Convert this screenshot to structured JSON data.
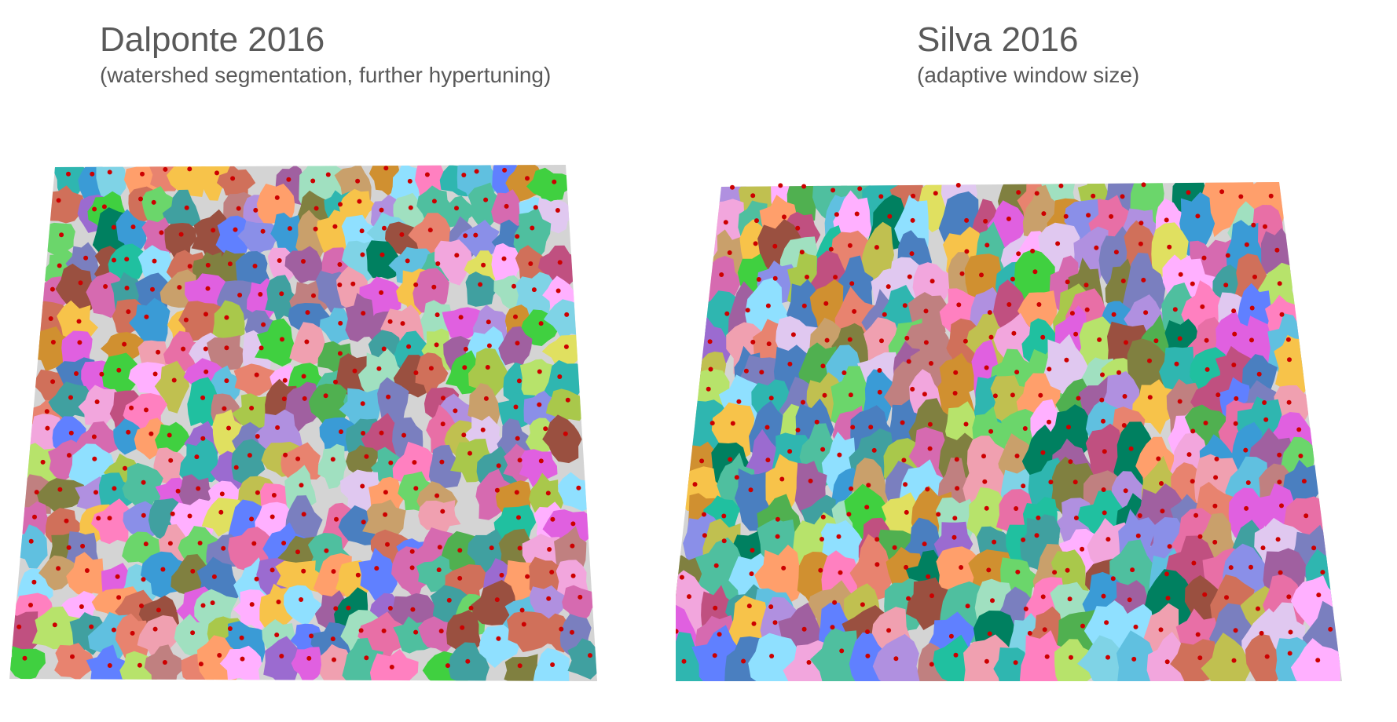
{
  "panels": [
    {
      "title": "Dalponte 2016",
      "subtitle": "(watershed segmentation, further hypertuning)"
    },
    {
      "title": "Silva 2016",
      "subtitle": "(adaptive window size)"
    }
  ],
  "colors": {
    "text": "#595959",
    "tree_top_marker": "#cc0000",
    "unsegmented_points": "#d4d4d4",
    "segment_palette": [
      "#f2a6dd",
      "#7fd3e6",
      "#a9c84b",
      "#e8836f",
      "#4fbf9f",
      "#9b6bd0",
      "#f7c34a",
      "#3a9bd6",
      "#d66ab0",
      "#6bd66b",
      "#c9a06b",
      "#8a8fe8",
      "#e86fa6",
      "#2fb6b0",
      "#b7e36b",
      "#ff9f6b",
      "#7a7fbf",
      "#e0c8f0",
      "#a0e0c0",
      "#d0705a",
      "#4a7fc0",
      "#c0c050",
      "#f0a0b0",
      "#60c0e0",
      "#9a5040",
      "#50b050",
      "#e0e060",
      "#b090e0",
      "#40a0a0",
      "#ff80c0",
      "#808040",
      "#20c0a0",
      "#c08080",
      "#a060a0",
      "#8fe0ff",
      "#d09030",
      "#e060e0",
      "#6080ff",
      "#40d040",
      "#ffb0ff",
      "#008060",
      "#c05080"
    ]
  }
}
